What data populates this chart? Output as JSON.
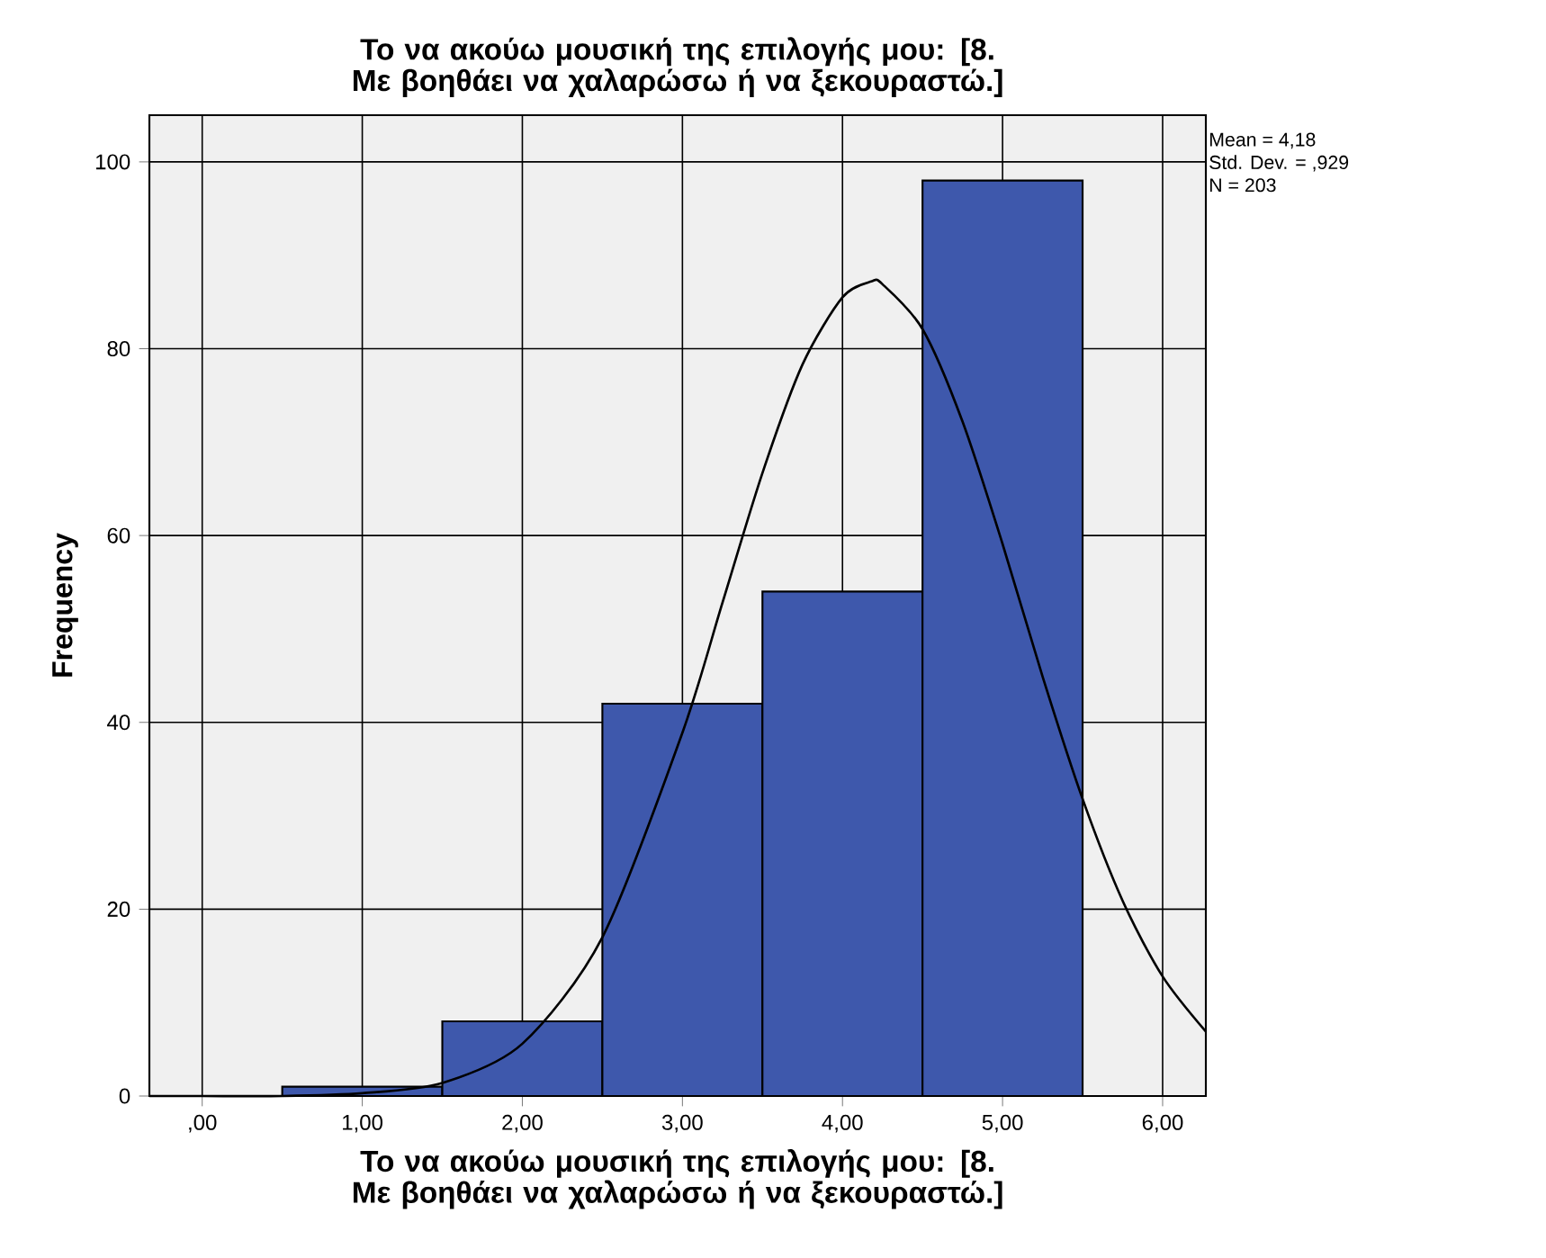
{
  "chart_data": {
    "type": "histogram",
    "title": "Το να ακούω μουσική της επιλογής μου: [8. Με βοηθάει να χαλαρώσω ή να ξεκουραστώ.]",
    "xlabel": "Το να ακούω μουσική της επιλογής μου: [8. Με βοηθάει να χαλαρώσω ή να ξεκουραστώ.]",
    "ylabel": "Frequency",
    "annotations": [
      "Mean = 4,18",
      "Std. Dev. = ,929",
      "N = 203"
    ],
    "bins": [
      0.5,
      1.5,
      2.5,
      3.5,
      4.5,
      5.5
    ],
    "series": [
      {
        "color": "#3e58ac",
        "values": [
          1,
          8,
          42,
          54,
          98
        ]
      },
      {
        "type": "line",
        "color": "#000000",
        "x": [
          -0.33,
          0,
          0.5,
          1,
          1.5,
          2,
          2.5,
          3,
          3.25,
          3.5,
          3.75,
          4,
          4.18,
          4.25,
          4.5,
          4.75,
          5,
          5.25,
          5.5,
          5.75,
          6,
          6.27
        ],
        "values": [
          0,
          0,
          0,
          0.3,
          1.4,
          5.6,
          17,
          38.9,
          52.8,
          66.7,
          78.3,
          85.5,
          87.2,
          86.9,
          82.1,
          72.2,
          59.1,
          44.9,
          31.8,
          20.9,
          12.8,
          6.9
        ]
      }
    ],
    "xlim": [
      -0.33,
      6.27
    ],
    "ylim": [
      0,
      105
    ],
    "xticks": [
      {
        "value": 0,
        "label": ",00"
      },
      {
        "value": 1,
        "label": "1,00"
      },
      {
        "value": 2,
        "label": "2,00"
      },
      {
        "value": 3,
        "label": "3,00"
      },
      {
        "value": 4,
        "label": "4,00"
      },
      {
        "value": 5,
        "label": "5,00"
      },
      {
        "value": 6,
        "label": "6,00"
      }
    ],
    "yticks": [
      0,
      20,
      40,
      60,
      80,
      100
    ],
    "grid": true
  }
}
